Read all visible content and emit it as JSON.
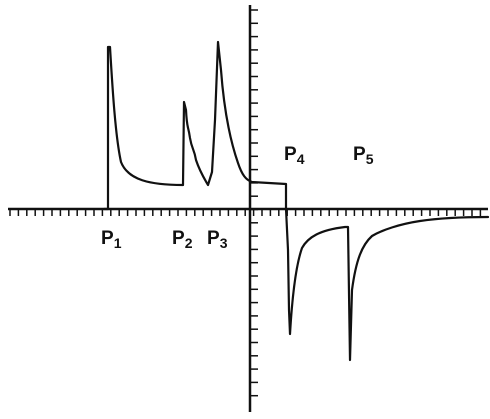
{
  "figure": {
    "line_color": "#111111",
    "background": "#ffffff"
  },
  "peaks": [
    {
      "letter": "P",
      "index": "1"
    },
    {
      "letter": "P",
      "index": "2"
    },
    {
      "letter": "P",
      "index": "3"
    },
    {
      "letter": "P",
      "index": "4"
    },
    {
      "letter": "P",
      "index": "5"
    }
  ]
}
